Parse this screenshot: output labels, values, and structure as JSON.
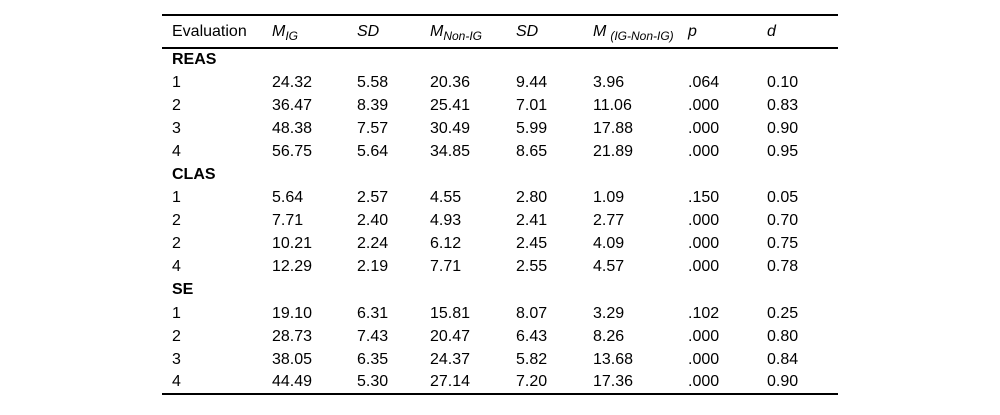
{
  "colors": {
    "background": "#ffffff",
    "text": "#000000",
    "rule": "#000000"
  },
  "table": {
    "columns": [
      {
        "label": "Evaluation"
      },
      {
        "base": "M",
        "sub": "IG"
      },
      {
        "label": "SD"
      },
      {
        "base": "M",
        "sub": "Non-IG"
      },
      {
        "label": "SD"
      },
      {
        "base": "M",
        "sub": "(IG-Non-IG)"
      },
      {
        "label": "p"
      },
      {
        "label": "d"
      }
    ],
    "sections": [
      {
        "name": "REAS",
        "rows": [
          [
            "1",
            "24.32",
            "5.58",
            "20.36",
            "9.44",
            "3.96",
            ".064",
            "0.10"
          ],
          [
            "2",
            "36.47",
            "8.39",
            "25.41",
            "7.01",
            "11.06",
            ".000",
            "0.83"
          ],
          [
            "3",
            "48.38",
            "7.57",
            "30.49",
            "5.99",
            "17.88",
            ".000",
            "0.90"
          ],
          [
            "4",
            "56.75",
            "5.64",
            "34.85",
            "8.65",
            "21.89",
            ".000",
            "0.95"
          ]
        ]
      },
      {
        "name": "CLAS",
        "rows": [
          [
            "1",
            "5.64",
            "2.57",
            "4.55",
            "2.80",
            "1.09",
            ".150",
            "0.05"
          ],
          [
            "2",
            "7.71",
            "2.40",
            "4.93",
            "2.41",
            "2.77",
            ".000",
            "0.70"
          ],
          [
            "2",
            "10.21",
            "2.24",
            "6.12",
            "2.45",
            "4.09",
            ".000",
            "0.75"
          ],
          [
            "4",
            "12.29",
            "2.19",
            "7.71",
            "2.55",
            "4.57",
            ".000",
            "0.78"
          ]
        ]
      },
      {
        "name": "SE",
        "rows": [
          [
            "1",
            "19.10",
            "6.31",
            "15.81",
            "8.07",
            "3.29",
            ".102",
            "0.25"
          ],
          [
            "2",
            "28.73",
            "7.43",
            "20.47",
            "6.43",
            "8.26",
            ".000",
            "0.80"
          ],
          [
            "3",
            "38.05",
            "6.35",
            "24.37",
            "5.82",
            "13.68",
            ".000",
            "0.84"
          ],
          [
            "4",
            "44.49",
            "5.30",
            "27.14",
            "7.20",
            "17.36",
            ".000",
            "0.90"
          ]
        ]
      }
    ]
  }
}
